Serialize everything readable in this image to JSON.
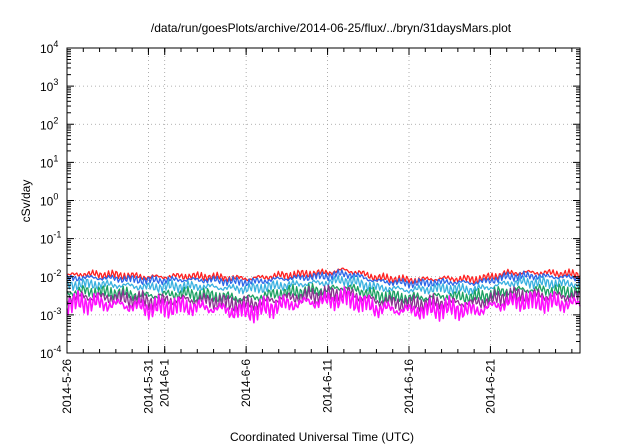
{
  "chart_data": {
    "type": "line",
    "title": "/data/run/goesPlots/archive/2014-06-25/flux/../bryn/31daysMars.plot",
    "xlabel": "Coordinated Universal Time (UTC)",
    "ylabel": "cSv/day",
    "yscale": "log",
    "ylim": [
      0.0001,
      10000
    ],
    "y_ticks": [
      {
        "value": 0.0001,
        "base": "10",
        "exp": "-4"
      },
      {
        "value": 0.001,
        "base": "10",
        "exp": "-3"
      },
      {
        "value": 0.01,
        "base": "10",
        "exp": "-2"
      },
      {
        "value": 0.1,
        "base": "10",
        "exp": "-1"
      },
      {
        "value": 1,
        "base": "10",
        "exp": "0"
      },
      {
        "value": 10,
        "base": "10",
        "exp": "1"
      },
      {
        "value": 100,
        "base": "10",
        "exp": "2"
      },
      {
        "value": 1000,
        "base": "10",
        "exp": "3"
      },
      {
        "value": 10000,
        "base": "10",
        "exp": "4"
      }
    ],
    "x_domain_days": [
      0,
      31.5
    ],
    "x_ticks": [
      {
        "day": 0,
        "label": "2014-5-26"
      },
      {
        "day": 5,
        "label": "2014-5-31"
      },
      {
        "day": 6,
        "label": "2014-6-1"
      },
      {
        "day": 11,
        "label": "2014-6-6"
      },
      {
        "day": 16,
        "label": "2014-6-11"
      },
      {
        "day": 21,
        "label": "2014-6-16"
      },
      {
        "day": 26,
        "label": "2014-6-21"
      }
    ],
    "grid": true,
    "legend": "none",
    "series": [
      {
        "name": "red",
        "color": "#ff2020",
        "days": [
          0,
          1,
          2,
          3,
          4,
          5,
          6,
          7,
          8,
          9,
          10,
          11,
          12,
          13,
          14,
          15,
          16,
          17,
          18,
          19,
          20,
          21,
          22,
          23,
          24,
          25,
          26,
          27,
          28,
          29,
          30,
          31.5
        ],
        "values": [
          0.0108,
          0.0118,
          0.0115,
          0.0112,
          0.0105,
          0.0098,
          0.01,
          0.0104,
          0.0102,
          0.0099,
          0.0093,
          0.009,
          0.0095,
          0.0108,
          0.0114,
          0.0123,
          0.0129,
          0.0152,
          0.0124,
          0.0095,
          0.0089,
          0.0082,
          0.0085,
          0.009,
          0.0088,
          0.0085,
          0.0098,
          0.0124,
          0.013,
          0.0128,
          0.0123,
          0.0114
        ]
      },
      {
        "name": "blue",
        "color": "#2a66e8",
        "days": [
          0,
          1,
          2,
          3,
          4,
          5,
          6,
          7,
          8,
          9,
          10,
          11,
          12,
          13,
          14,
          15,
          16,
          17,
          18,
          19,
          20,
          21,
          22,
          23,
          24,
          25,
          26,
          27,
          28,
          29,
          30,
          31.5
        ],
        "values": [
          0.0088,
          0.0096,
          0.0093,
          0.009,
          0.0085,
          0.008,
          0.0082,
          0.0084,
          0.0083,
          0.0081,
          0.0076,
          0.0073,
          0.0077,
          0.0088,
          0.0092,
          0.01,
          0.0105,
          0.0122,
          0.0101,
          0.0077,
          0.0072,
          0.0067,
          0.0069,
          0.0073,
          0.0071,
          0.0069,
          0.008,
          0.01,
          0.0106,
          0.0104,
          0.01,
          0.0093
        ]
      },
      {
        "name": "cyan",
        "color": "#38b0e0",
        "days": [
          0,
          1,
          2,
          3,
          4,
          5,
          6,
          7,
          8,
          9,
          10,
          11,
          12,
          13,
          14,
          15,
          16,
          17,
          18,
          19,
          20,
          21,
          22,
          23,
          24,
          25,
          26,
          27,
          28,
          29,
          30,
          31.5
        ],
        "values": [
          0.006,
          0.0065,
          0.0063,
          0.0061,
          0.0057,
          0.0053,
          0.0055,
          0.0057,
          0.0056,
          0.0054,
          0.005,
          0.0048,
          0.0052,
          0.0059,
          0.0063,
          0.0068,
          0.0071,
          0.0083,
          0.0068,
          0.0052,
          0.0049,
          0.0045,
          0.0047,
          0.005,
          0.0048,
          0.0047,
          0.0054,
          0.0068,
          0.0072,
          0.0071,
          0.0068,
          0.0063
        ]
      },
      {
        "name": "green",
        "color": "#1aa060",
        "days": [
          0,
          1,
          2,
          3,
          4,
          5,
          6,
          7,
          8,
          9,
          10,
          11,
          12,
          13,
          14,
          15,
          16,
          17,
          18,
          19,
          20,
          21,
          22,
          23,
          24,
          25,
          26,
          27,
          28,
          29,
          30,
          31.5
        ],
        "values": [
          0.0038,
          0.0042,
          0.004,
          0.0038,
          0.0035,
          0.0032,
          0.0034,
          0.0036,
          0.0034,
          0.0032,
          0.0029,
          0.0027,
          0.0031,
          0.0037,
          0.004,
          0.0044,
          0.0046,
          0.0054,
          0.0043,
          0.0032,
          0.003,
          0.0028,
          0.0029,
          0.0031,
          0.003,
          0.0029,
          0.0034,
          0.0043,
          0.0046,
          0.0045,
          0.0043,
          0.004
        ]
      },
      {
        "name": "purple",
        "color": "#8a3090",
        "days": [
          0,
          1,
          2,
          3,
          4,
          5,
          6,
          7,
          8,
          9,
          10,
          11,
          12,
          13,
          14,
          15,
          16,
          17,
          18,
          19,
          20,
          21,
          22,
          23,
          24,
          25,
          26,
          27,
          28,
          29,
          30,
          31.5
        ],
        "values": [
          0.0028,
          0.0031,
          0.0029,
          0.0028,
          0.0025,
          0.0023,
          0.0024,
          0.0026,
          0.0024,
          0.0023,
          0.002,
          0.0019,
          0.0022,
          0.0027,
          0.0029,
          0.0032,
          0.0034,
          0.004,
          0.0031,
          0.0023,
          0.0021,
          0.0019,
          0.002,
          0.0022,
          0.0021,
          0.002,
          0.0024,
          0.0031,
          0.0034,
          0.0033,
          0.0031,
          0.0029
        ]
      },
      {
        "name": "magenta",
        "color": "#ff10ff",
        "days": [
          0,
          1,
          2,
          3,
          4,
          5,
          6,
          7,
          8,
          9,
          10,
          11,
          12,
          13,
          14,
          15,
          16,
          17,
          18,
          19,
          20,
          21,
          22,
          23,
          24,
          25,
          26,
          27,
          28,
          29,
          30,
          31.5
        ],
        "values": [
          0.0019,
          0.0021,
          0.002,
          0.0019,
          0.0017,
          0.0015,
          0.0016,
          0.0017,
          0.0016,
          0.0015,
          0.0013,
          0.0012,
          0.0014,
          0.0018,
          0.002,
          0.0022,
          0.0023,
          0.0028,
          0.0021,
          0.0015,
          0.0014,
          0.0013,
          0.0013,
          0.0015,
          0.0014,
          0.0013,
          0.0016,
          0.0021,
          0.0023,
          0.0022,
          0.0021,
          0.0019
        ]
      }
    ]
  }
}
